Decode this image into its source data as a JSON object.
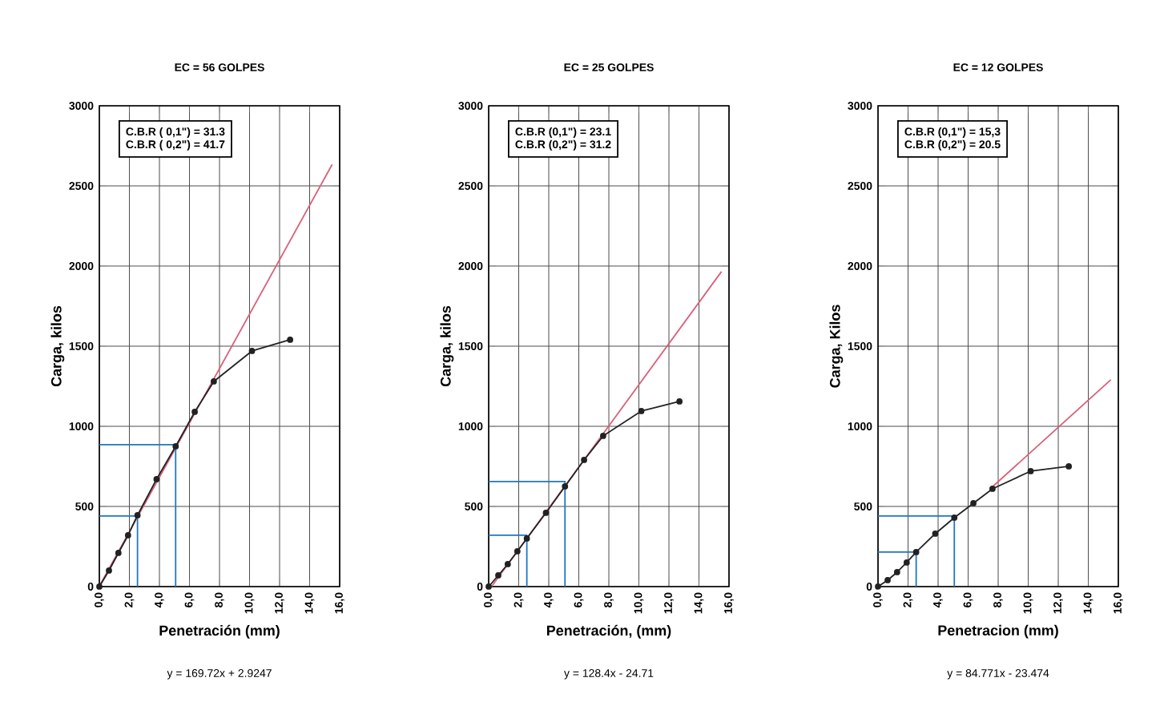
{
  "chart_data": [
    {
      "type": "line",
      "title": "EC = 56 GOLPES",
      "xlabel": "Penetración (mm)",
      "ylabel": "Carga, kilos",
      "xlim": [
        0,
        16
      ],
      "ylim": [
        0,
        3000
      ],
      "xticks": [
        {
          "value": 0,
          "label": "0,0"
        },
        {
          "value": 2,
          "label": "2,0"
        },
        {
          "value": 4,
          "label": "4,0"
        },
        {
          "value": 6,
          "label": "6,0"
        },
        {
          "value": 8,
          "label": "8,0"
        },
        {
          "value": 10,
          "label": "10,0"
        },
        {
          "value": 12,
          "label": "12,0"
        },
        {
          "value": 14,
          "label": "14,0"
        },
        {
          "value": 16,
          "label": "16,0"
        }
      ],
      "yticks": [
        0,
        500,
        1000,
        1500,
        2000,
        2500,
        3000
      ],
      "grid": true,
      "annotations": [
        "C.B.R ( 0,1\") = 31.3",
        "C.B.R ( 0,2\") = 41.7",
        "y = 169.72x + 2.9247"
      ],
      "series": [
        {
          "color": "#d9607a",
          "x": [
            0,
            15.5
          ],
          "values": [
            2.92,
            2633.6
          ]
        },
        {
          "color": "#1f77c0",
          "x": [
            0,
            2.54,
            2.54
          ],
          "values": [
            440,
            440,
            0
          ]
        },
        {
          "color": "#1f77c0",
          "x": [
            0,
            5.08,
            5.08
          ],
          "values": [
            885,
            885,
            0
          ]
        },
        {
          "color": "#222222",
          "marker": "circle",
          "x": [
            0,
            0.64,
            1.27,
            1.91,
            2.54,
            3.81,
            5.08,
            6.35,
            7.62,
            10.16,
            12.7
          ],
          "values": [
            0,
            100,
            210,
            320,
            445,
            670,
            875,
            1090,
            1280,
            1470,
            1540
          ]
        }
      ]
    },
    {
      "type": "line",
      "title": "EC = 25 GOLPES",
      "xlabel": "Penetración, (mm)",
      "ylabel": "Carga, kilos",
      "xlim": [
        0,
        16
      ],
      "ylim": [
        0,
        3000
      ],
      "xticks": [
        {
          "value": 0,
          "label": "0,0"
        },
        {
          "value": 2,
          "label": "2,0"
        },
        {
          "value": 4,
          "label": "4,0"
        },
        {
          "value": 6,
          "label": "6,0"
        },
        {
          "value": 8,
          "label": "8,0"
        },
        {
          "value": 10,
          "label": "10,0"
        },
        {
          "value": 12,
          "label": "12,0"
        },
        {
          "value": 14,
          "label": "14,0"
        },
        {
          "value": 16,
          "label": "16,0"
        }
      ],
      "yticks": [
        0,
        500,
        1000,
        1500,
        2000,
        2500,
        3000
      ],
      "grid": true,
      "annotations": [
        "C.B.R (0,1\") = 23.1",
        "C.B.R (0,2\") = 31.2",
        "y = 128.4x - 24.71"
      ],
      "series": [
        {
          "color": "#d9607a",
          "x": [
            0.2,
            15.5
          ],
          "values": [
            0.97,
            1965.5
          ]
        },
        {
          "color": "#1f77c0",
          "x": [
            0,
            2.54,
            2.54
          ],
          "values": [
            320,
            320,
            0
          ]
        },
        {
          "color": "#1f77c0",
          "x": [
            0,
            5.08,
            5.08
          ],
          "values": [
            655,
            655,
            0
          ]
        },
        {
          "color": "#222222",
          "marker": "circle",
          "x": [
            0,
            0.64,
            1.27,
            1.91,
            2.54,
            3.81,
            5.08,
            6.35,
            7.62,
            10.16,
            12.7
          ],
          "values": [
            0,
            70,
            140,
            220,
            300,
            460,
            625,
            790,
            940,
            1095,
            1155
          ]
        }
      ]
    },
    {
      "type": "line",
      "title": "EC = 12 GOLPES",
      "xlabel": "Penetracion (mm)",
      "ylabel": "Carga, Kilos",
      "xlim": [
        0,
        16
      ],
      "ylim": [
        0,
        3000
      ],
      "xticks": [
        {
          "value": 0,
          "label": "0,0"
        },
        {
          "value": 2,
          "label": "2,0"
        },
        {
          "value": 4,
          "label": "4,0"
        },
        {
          "value": 6,
          "label": "6,0"
        },
        {
          "value": 8,
          "label": "8,0"
        },
        {
          "value": 10,
          "label": "10,0"
        },
        {
          "value": 12,
          "label": "12,0"
        },
        {
          "value": 14,
          "label": "14,0"
        },
        {
          "value": 16,
          "label": "16,0"
        }
      ],
      "yticks": [
        0,
        500,
        1000,
        1500,
        2000,
        2500,
        3000
      ],
      "grid": true,
      "annotations": [
        "C.B.R (0,1\") = 15,3",
        "C.B.R (0,2\") = 20.5",
        "y = 84.771x - 23.474"
      ],
      "series": [
        {
          "color": "#d9607a",
          "x": [
            7.5,
            15.5
          ],
          "values": [
            612.3,
            1290.5
          ]
        },
        {
          "color": "#1f77c0",
          "x": [
            0,
            2.54,
            2.54
          ],
          "values": [
            215,
            215,
            0
          ]
        },
        {
          "color": "#1f77c0",
          "x": [
            0,
            5.08,
            5.08
          ],
          "values": [
            440,
            440,
            0
          ]
        },
        {
          "color": "#222222",
          "marker": "circle",
          "x": [
            0,
            0.64,
            1.27,
            1.91,
            2.54,
            3.81,
            5.08,
            6.35,
            7.62,
            10.16,
            12.7
          ],
          "values": [
            0,
            40,
            90,
            150,
            215,
            330,
            430,
            520,
            610,
            720,
            750
          ]
        }
      ]
    }
  ]
}
